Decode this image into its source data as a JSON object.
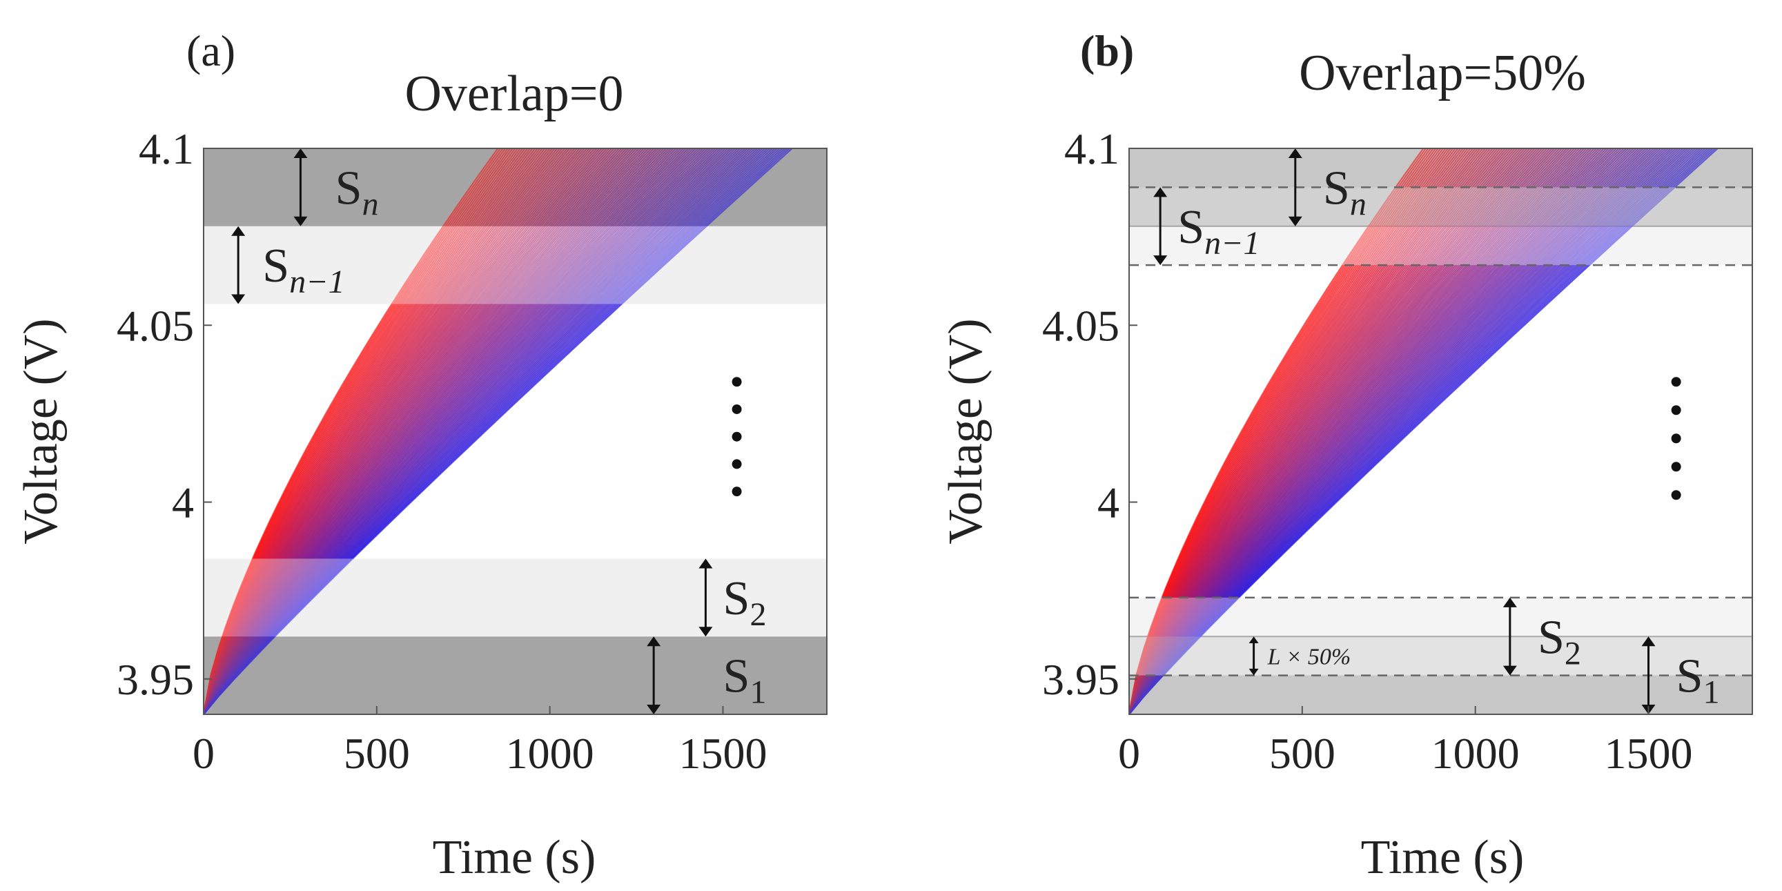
{
  "colors": {
    "band_dark": "#a9a9a9",
    "band_light": "#e8e8e8",
    "band_overlap_dark": "#cfcfcf",
    "band_overlap_light": "#ececec",
    "curve_early": "#ff1010",
    "curve_late": "#2a1ae0",
    "frame": "#555555",
    "dashed": "#666666"
  },
  "chart_data": [
    {
      "type": "line",
      "panel_label": "(a)",
      "title": "Overlap=0",
      "xlabel": "Time (s)",
      "ylabel": "Voltage (V)",
      "xlim": [
        0,
        1800
      ],
      "ylim": [
        3.94,
        4.1
      ],
      "xticks": [
        0,
        500,
        1000,
        1500
      ],
      "xtick_labels": [
        "0",
        "500",
        "1000",
        "1500"
      ],
      "yticks": [
        3.95,
        4.0,
        4.05,
        4.1
      ],
      "ytick_labels": [
        "3.95",
        "4",
        "4.05",
        "4.1"
      ],
      "grid": false,
      "series_description": "charging voltage curves from 3.94 V to 4.1 V, end times ranging from about 850 s (red) to 1700 s (blue)",
      "curve_end_time_range": [
        850,
        1700
      ],
      "bands": [
        {
          "name": "S1",
          "label": "S",
          "sub": "1",
          "ymin": 3.94,
          "ymax": 3.962,
          "shade": "dark",
          "arrow_x": 1300,
          "label_x": 1500
        },
        {
          "name": "S2",
          "label": "S",
          "sub": "2",
          "ymin": 3.962,
          "ymax": 3.984,
          "shade": "light",
          "arrow_x": 1450,
          "label_x": 1500
        },
        {
          "name": "Sn-1",
          "label": "S",
          "sub": "n−1",
          "ymin": 4.056,
          "ymax": 4.078,
          "shade": "light",
          "arrow_x": 100,
          "label_x": 170
        },
        {
          "name": "Sn",
          "label": "S",
          "sub": "n",
          "ymin": 4.078,
          "ymax": 4.1,
          "shade": "dark",
          "arrow_x": 280,
          "label_x": 380
        }
      ],
      "ellipsis_x": 1540,
      "ellipsis_y_range": [
        4.003,
        4.034
      ]
    },
    {
      "type": "line",
      "panel_label": "(b)",
      "title": "Overlap=50%",
      "xlabel": "Time (s)",
      "ylabel": "Voltage (V)",
      "xlim": [
        0,
        1800
      ],
      "ylim": [
        3.94,
        4.1
      ],
      "xticks": [
        0,
        500,
        1000,
        1500
      ],
      "xtick_labels": [
        "0",
        "500",
        "1000",
        "1500"
      ],
      "yticks": [
        3.95,
        4.0,
        4.05,
        4.1
      ],
      "ytick_labels": [
        "3.95",
        "4",
        "4.05",
        "4.1"
      ],
      "grid": false,
      "series_description": "charging voltage curves from 3.94 V to 4.1 V, end times ranging from about 850 s (red) to 1700 s (blue)",
      "curve_end_time_range": [
        850,
        1700
      ],
      "bands": [
        {
          "name": "S1",
          "label": "S",
          "sub": "1",
          "ymin": 3.94,
          "ymax": 3.962,
          "shade": "dark",
          "arrow_x": 1500,
          "label_x": 1580
        },
        {
          "name": "S2",
          "label": "S",
          "sub": "2",
          "ymin": 3.951,
          "ymax": 3.973,
          "shade": "light",
          "arrow_x": 1100,
          "label_x": 1180
        },
        {
          "name": "Sn-1",
          "label": "S",
          "sub": "n−1",
          "ymin": 4.067,
          "ymax": 4.089,
          "shade": "light",
          "arrow_x": 90,
          "label_x": 140
        },
        {
          "name": "Sn",
          "label": "S",
          "sub": "n",
          "ymin": 4.078,
          "ymax": 4.1,
          "shade": "dark",
          "arrow_x": 480,
          "label_x": 560
        }
      ],
      "dashed_lines": [
        3.951,
        3.973,
        4.067,
        4.089
      ],
      "overlap_annotation": {
        "text": "L × 50%",
        "arrow_x": 360,
        "label_x": 400,
        "ymin": 3.951,
        "ymax": 3.962
      },
      "ellipsis_x": 1580,
      "ellipsis_y_range": [
        4.002,
        4.034
      ]
    }
  ]
}
